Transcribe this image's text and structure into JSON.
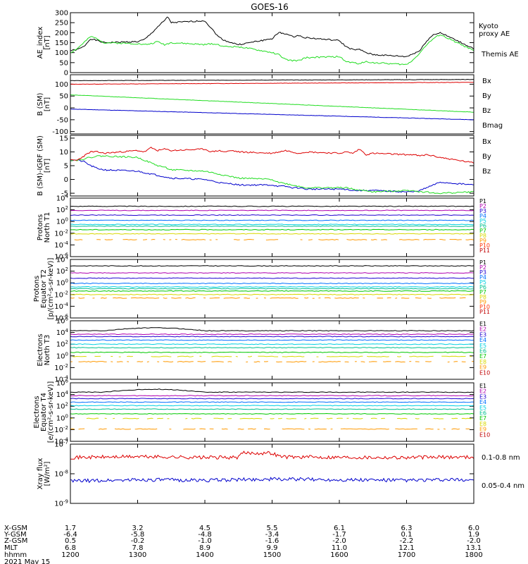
{
  "title": "GOES-16",
  "colors": {
    "black": "#000000",
    "red": "#dd0000",
    "green": "#22dd22",
    "blue": "#0000cc"
  },
  "chart_data": [
    {
      "type": "line",
      "id": "ae",
      "ylabel": "AE_index\n[nT]",
      "ylim": [
        0,
        300
      ],
      "yticks": [
        "0",
        "50",
        "100",
        "150",
        "200",
        "250",
        "300"
      ],
      "series": [
        {
          "name": "Themis AE",
          "color": "#000000",
          "x": [
            1200,
            1210,
            1220,
            1230,
            1240,
            1250,
            1300,
            1310,
            1320,
            1330,
            1340,
            1345,
            1350,
            1400,
            1410,
            1420,
            1430,
            1440,
            1450,
            1500,
            1510,
            1520,
            1530,
            1540,
            1550,
            1600,
            1610,
            1620,
            1630,
            1640,
            1650,
            1700,
            1710,
            1720,
            1730,
            1740,
            1750,
            1800
          ],
          "y": [
            110,
            115,
            130,
            170,
            160,
            150,
            155,
            165,
            195,
            230,
            260,
            280,
            250,
            260,
            220,
            180,
            160,
            150,
            140,
            170,
            200,
            195,
            180,
            185,
            175,
            160,
            130,
            115,
            115,
            100,
            90,
            80,
            95,
            110,
            160,
            190,
            200,
            120
          ]
        },
        {
          "name": "Kyoto proxy AE",
          "color": "#22dd22",
          "x": [
            1200,
            1210,
            1220,
            1230,
            1240,
            1250,
            1300,
            1310,
            1320,
            1330,
            1340,
            1350,
            1400,
            1410,
            1420,
            1430,
            1440,
            1450,
            1500,
            1510,
            1520,
            1530,
            1540,
            1550,
            1600,
            1610,
            1620,
            1630,
            1640,
            1650,
            1700,
            1710,
            1720,
            1730,
            1740,
            1750,
            1800
          ],
          "y": [
            100,
            120,
            150,
            180,
            170,
            150,
            145,
            140,
            145,
            155,
            140,
            150,
            140,
            145,
            140,
            130,
            130,
            130,
            100,
            90,
            65,
            60,
            60,
            75,
            80,
            55,
            50,
            45,
            55,
            50,
            40,
            65,
            100,
            140,
            170,
            190,
            110
          ]
        }
      ],
      "legend": [
        "Kyoto\nproxy AE",
        "Themis AE"
      ]
    },
    {
      "type": "line",
      "id": "bsm",
      "ylabel": "B (SM)\n[nT]",
      "ylim": [
        -110,
        140
      ],
      "yticks": [
        "-100",
        "-50",
        "0",
        "50",
        "100"
      ],
      "series": [
        {
          "name": "Bx",
          "color": "#0000cc",
          "x": [
            1200,
            1800
          ],
          "y": [
            -5,
            -50
          ]
        },
        {
          "name": "By",
          "color": "#22dd22",
          "x": [
            1200,
            1800
          ],
          "y": [
            55,
            -18
          ]
        },
        {
          "name": "Bz",
          "color": "#dd0000",
          "x": [
            1200,
            1800
          ],
          "y": [
            100,
            108
          ]
        },
        {
          "name": "Bmag",
          "color": "#000000",
          "x": [
            1200,
            1800
          ],
          "y": [
            115,
            120
          ]
        }
      ],
      "legend": [
        "Bx",
        "By",
        "Bz",
        "Bmag"
      ]
    },
    {
      "type": "line",
      "id": "bigrf",
      "ylabel": "B (SM)-IGRF (SM)\n[nT]",
      "ylim": [
        -6,
        16
      ],
      "yticks": [
        "-5",
        "0",
        "5",
        "10",
        "15"
      ],
      "series": [
        {
          "name": "Bx",
          "color": "#0000cc",
          "x": [
            1200,
            1210,
            1220,
            1230,
            1240,
            1250,
            1300,
            1310,
            1320,
            1330,
            1340,
            1350,
            1400,
            1410,
            1420,
            1430,
            1440,
            1450,
            1500,
            1510,
            1520,
            1530,
            1540,
            1550,
            1600,
            1610,
            1620,
            1630,
            1640,
            1650,
            1700,
            1710,
            1720,
            1730,
            1740,
            1750,
            1800
          ],
          "y": [
            7,
            7,
            6.5,
            5,
            4,
            3.5,
            3,
            2.5,
            2,
            1.5,
            1,
            0.5,
            0,
            -0.5,
            -1,
            -1.5,
            -1.5,
            -2,
            -2,
            -2.5,
            -2.5,
            -3,
            -3,
            -3.5,
            -3.5,
            -3.5,
            -4,
            -4,
            -4,
            -4,
            -4.5,
            -4.5,
            -4,
            -3,
            -2,
            -1,
            -2
          ]
        },
        {
          "name": "By",
          "color": "#22dd22",
          "x": [
            1200,
            1210,
            1220,
            1230,
            1240,
            1250,
            1300,
            1310,
            1320,
            1330,
            1340,
            1350,
            1400,
            1410,
            1420,
            1430,
            1440,
            1450,
            1500,
            1510,
            1520,
            1530,
            1540,
            1550,
            1600,
            1610,
            1620,
            1630,
            1640,
            1650,
            1700,
            1710,
            1720,
            1730,
            1740,
            1750,
            1800
          ],
          "y": [
            7,
            7,
            7.5,
            8,
            8.5,
            8.5,
            8,
            7,
            6,
            5,
            4.5,
            3.5,
            3,
            2.5,
            2,
            1.5,
            1,
            0.5,
            0,
            -1,
            -1.5,
            -2,
            -2.5,
            -3,
            -3,
            -3,
            -3.5,
            -4,
            -4,
            -4.5,
            -4,
            -4,
            -4.5,
            -4.5,
            -5,
            -5,
            -4.5
          ]
        },
        {
          "name": "Bz",
          "color": "#dd0000",
          "x": [
            1200,
            1210,
            1220,
            1230,
            1240,
            1250,
            1300,
            1310,
            1320,
            1330,
            1340,
            1350,
            1400,
            1410,
            1420,
            1430,
            1440,
            1450,
            1500,
            1510,
            1520,
            1530,
            1540,
            1550,
            1600,
            1610,
            1620,
            1630,
            1640,
            1650,
            1700,
            1710,
            1720,
            1730,
            1740,
            1750,
            1800
          ],
          "y": [
            7,
            7,
            8.5,
            10,
            10,
            9.5,
            10.5,
            10,
            11.5,
            10.5,
            11,
            10.5,
            11,
            10,
            10.5,
            10,
            10.5,
            10,
            9.5,
            10,
            10.5,
            10,
            9.5,
            10,
            9.5,
            10,
            9.5,
            11,
            9,
            9.5,
            9,
            9,
            8.5,
            9,
            8.5,
            8,
            6
          ]
        }
      ],
      "legend": [
        "Bx",
        "By",
        "Bz"
      ]
    },
    {
      "type": "line",
      "id": "pn",
      "log": true,
      "ylabel": "Protons\nNorth T1",
      "ylim": [
        -6,
        4
      ],
      "yticks": [
        "10^4",
        "10^2",
        "10^0",
        "10^-2",
        "10^-4",
        "10^-6"
      ],
      "levels": [
        2.6,
        1.9,
        1.1,
        0.2,
        -0.5,
        -0.8,
        -1.4,
        -2.1,
        -3.1,
        -6,
        -6
      ],
      "colors": [
        "#000000",
        "#b000b0",
        "#2000d0",
        "#0070ff",
        "#00d0e0",
        "#00c090",
        "#00c800",
        "#d8d800",
        "#ff9900",
        "#ff3000",
        "#c00000"
      ],
      "legend": [
        "P1",
        "P2",
        "P3",
        "P4",
        "P5",
        "P6",
        "P7",
        "P8",
        "P9",
        "P10",
        "P11"
      ]
    },
    {
      "type": "line",
      "id": "pe",
      "log": true,
      "ylabel": "Protons\nEquator T2\n[p/(cm²-s-sr-keV)]",
      "ylim": [
        -6,
        4
      ],
      "yticks": [
        "10^4",
        "10^2",
        "10^0",
        "10^-2",
        "10^-4",
        "10^-6"
      ],
      "levels": [
        2.9,
        1.7,
        0.8,
        -0.1,
        -0.7,
        -1.0,
        -1.4,
        -2.0,
        -2.6,
        -6,
        -6
      ],
      "colors": [
        "#000000",
        "#b000b0",
        "#2000d0",
        "#0070ff",
        "#00d0e0",
        "#00c090",
        "#00c800",
        "#d8d800",
        "#ff9900",
        "#ff3000",
        "#c00000"
      ],
      "legend": [
        "P1",
        "P2",
        "P3",
        "P4",
        "P5",
        "P6",
        "P7",
        "P8",
        "P9",
        "P10",
        "P11"
      ]
    },
    {
      "type": "line",
      "id": "en",
      "log": true,
      "ylabel": "Electrons\nNorth T3",
      "ylim": [
        -4,
        6
      ],
      "yticks": [
        "10^6",
        "10^4",
        "10^2",
        "10^0",
        "10^-2",
        "10^-4"
      ],
      "levels": [
        4.3,
        3.7,
        3.3,
        2.7,
        2.0,
        1.4,
        0.6,
        -0.1,
        -1.0,
        -4
      ],
      "colors": [
        "#000000",
        "#b000b0",
        "#2000d0",
        "#0070ff",
        "#00d0e0",
        "#00c090",
        "#00c800",
        "#d8d800",
        "#ff9900",
        "#c00000"
      ],
      "legend": [
        "E1",
        "E2",
        "E3",
        "E4",
        "E5",
        "E6",
        "E7",
        "E8",
        "E9",
        "E10"
      ]
    },
    {
      "type": "line",
      "id": "ee",
      "log": true,
      "ylabel": "Electrons\nEquator T4\n[e/(cm²-s-sr-keV)]",
      "ylim": [
        -4,
        6
      ],
      "yticks": [
        "10^6",
        "10^4",
        "10^2",
        "10^0",
        "10^-2",
        "10^-4"
      ],
      "levels": [
        4.4,
        3.8,
        3.3,
        2.7,
        2.1,
        1.5,
        0.7,
        -0.1,
        -1.9,
        -4
      ],
      "colors": [
        "#000000",
        "#b000b0",
        "#2000d0",
        "#0070ff",
        "#00d0e0",
        "#00c090",
        "#00c800",
        "#d8d800",
        "#ff9900",
        "#c00000"
      ],
      "legend": [
        "E1",
        "E2",
        "E3",
        "E4",
        "E5",
        "E6",
        "E7",
        "E8",
        "E9",
        "E10"
      ]
    },
    {
      "type": "line",
      "id": "xray",
      "log": true,
      "ylabel": "Xray flux\n[W/m²]",
      "ylim": [
        -9,
        -7
      ],
      "yticks": [
        "10^-7",
        "10^-8",
        "10^-9"
      ],
      "series": [
        {
          "name": "0.1-0.8 nm",
          "color": "#dd0000",
          "x": [
            1200,
            1300,
            1400,
            1450,
            1455,
            1500,
            1510,
            1520,
            1600,
            1700,
            1800
          ],
          "y": [
            -7.45,
            -7.42,
            -7.45,
            -7.45,
            -7.3,
            -7.3,
            -7.4,
            -7.43,
            -7.44,
            -7.45,
            -7.43
          ]
        },
        {
          "name": "0.05-0.4 nm",
          "color": "#0000cc",
          "x": [
            1200,
            1300,
            1400,
            1500,
            1600,
            1700,
            1800
          ],
          "y": [
            -8.25,
            -8.2,
            -8.22,
            -8.18,
            -8.2,
            -8.22,
            -8.2
          ]
        }
      ],
      "legend": [
        "0.1-0.8 nm",
        "0.05-0.4 nm"
      ]
    }
  ],
  "xaxis": {
    "range": [
      1200,
      1800
    ],
    "row_labels": [
      "X-GSM",
      "Y-GSM",
      "Z-GSM",
      "MLT",
      "hhmm"
    ],
    "columns": [
      {
        "t": 1200,
        "vals": [
          "1.7",
          "-6.4",
          "0.5",
          "6.8",
          "1200"
        ]
      },
      {
        "t": 1300,
        "vals": [
          "3.2",
          "-5.8",
          "-0.2",
          "7.8",
          "1300"
        ]
      },
      {
        "t": 1400,
        "vals": [
          "4.5",
          "-4.8",
          "-1.0",
          "8.9",
          "1400"
        ]
      },
      {
        "t": 1500,
        "vals": [
          "5.5",
          "-3.4",
          "-1.6",
          "9.9",
          "1500"
        ]
      },
      {
        "t": 1600,
        "vals": [
          "6.1",
          "-1.7",
          "-2.0",
          "11.0",
          "1600"
        ]
      },
      {
        "t": 1700,
        "vals": [
          "6.3",
          "0.1",
          "-2.2",
          "12.1",
          "1700"
        ]
      },
      {
        "t": 1800,
        "vals": [
          "6.0",
          "1.9",
          "-2.0",
          "13.1",
          "1800"
        ]
      }
    ],
    "date": "2021 May 15"
  }
}
